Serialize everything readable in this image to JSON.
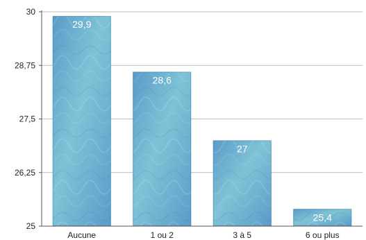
{
  "chart_data": {
    "type": "bar",
    "categories": [
      "Aucune",
      "1 ou 2",
      "3 à 5",
      "6 ou plus"
    ],
    "values": [
      29.9,
      28.6,
      27,
      25.4
    ],
    "data_labels": [
      "29,9",
      "28,6",
      "27",
      "25,4"
    ],
    "y_ticks": [
      25,
      26.25,
      27.5,
      28.75,
      30
    ],
    "y_tick_labels": [
      "25",
      "26,25",
      "27,5",
      "28,75",
      "30"
    ],
    "ylim": [
      25,
      30
    ],
    "grid": true,
    "title": "",
    "xlabel": "",
    "ylabel": "",
    "bar_color": "#5b9bc9",
    "bar_color_light": "#7fc3d6"
  }
}
